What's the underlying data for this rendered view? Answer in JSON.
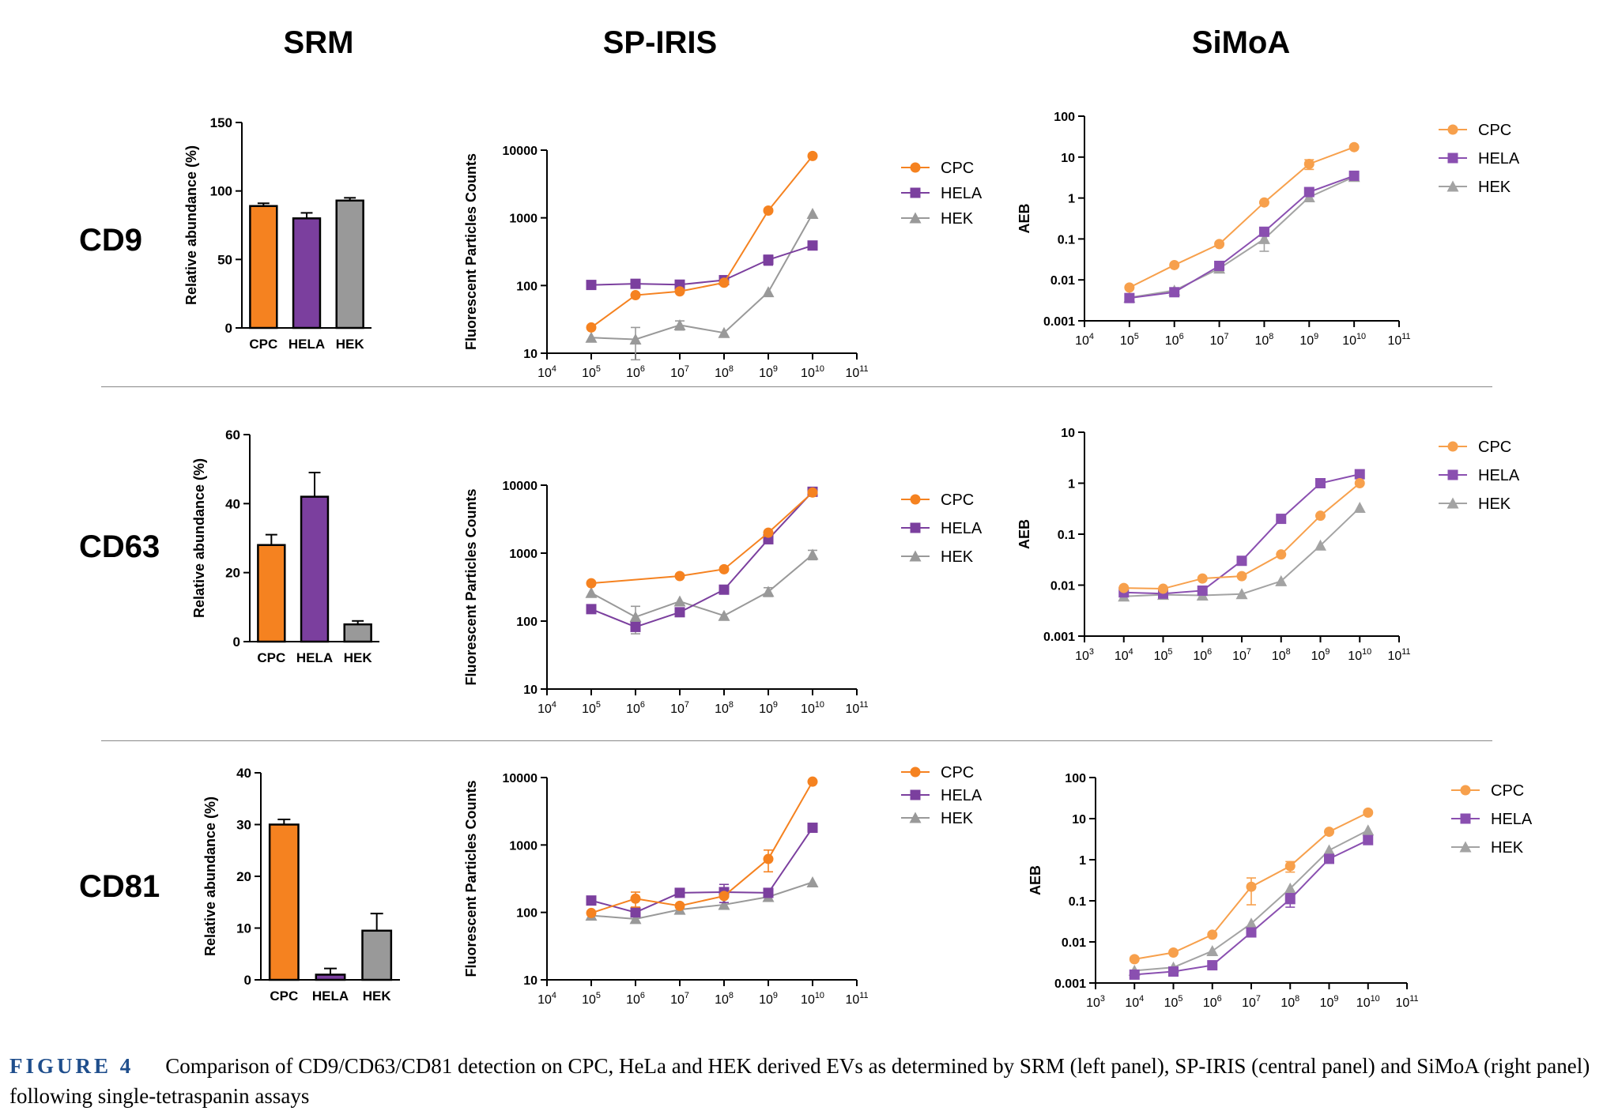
{
  "headers": {
    "srm": "SRM",
    "iris": "SP-IRIS",
    "simoa": "SiMoA"
  },
  "rows": [
    "CD9",
    "CD63",
    "CD81"
  ],
  "caption": {
    "label": "FIGURE 4",
    "text": "Comparison of CD9/CD63/CD81 detection on CPC, HeLa and HEK derived EVs as determined by SRM (left panel), SP-IRIS (central panel) and SiMoA (right panel) following single-tetraspanin assays"
  },
  "colors": {
    "CPC": "#f58220",
    "HELA": "#7b3f9e",
    "HEK": "#999999",
    "CPC_light": "#f7a04c",
    "HELA_light": "#8a4fb0",
    "HEK_light": "#a3a3a3"
  },
  "chart_data": [
    {
      "id": "srm_cd9",
      "type": "bar",
      "categories": [
        "CPC",
        "HELA",
        "HEK"
      ],
      "values": [
        89,
        80,
        93
      ],
      "errors": [
        2,
        4,
        2
      ],
      "ylabel": "Relative abundance (%)",
      "ylim": [
        0,
        150
      ],
      "yticks": [
        0,
        50,
        100,
        150
      ]
    },
    {
      "id": "iris_cd9",
      "type": "line",
      "xscale": "log",
      "yscale": "log",
      "x": [
        100000,
        1000000,
        10000000,
        100000000,
        1000000000,
        10000000000
      ],
      "xlim_exp": [
        4,
        11
      ],
      "ylim_exp": [
        1,
        4
      ],
      "ylabel": "Fluorescent Particles Counts",
      "series": [
        {
          "name": "CPC",
          "values": [
            24,
            72,
            82,
            110,
            1280,
            8200
          ],
          "marker": "circle"
        },
        {
          "name": "HELA",
          "values": [
            102,
            106,
            103,
            120,
            240,
            390
          ],
          "marker": "square",
          "errors": [
            0,
            0,
            0,
            0,
            40,
            0
          ]
        },
        {
          "name": "HEK",
          "values": [
            17,
            16,
            26,
            20,
            80,
            1150
          ],
          "marker": "triangle",
          "errors": [
            0,
            8,
            4,
            0,
            0,
            0
          ]
        }
      ]
    },
    {
      "id": "simoa_cd9",
      "type": "line",
      "xscale": "log",
      "yscale": "log",
      "x": [
        100000,
        1000000,
        10000000,
        100000000,
        1000000000,
        10000000000
      ],
      "xlim_exp": [
        4,
        11
      ],
      "ylim_exp": [
        -3,
        2
      ],
      "ylabel": "AEB",
      "series": [
        {
          "name": "CPC",
          "values": [
            0.0065,
            0.023,
            0.075,
            0.78,
            6.8,
            17.5
          ],
          "marker": "circle",
          "errors": [
            0,
            0,
            0,
            0,
            1.8,
            0
          ]
        },
        {
          "name": "HELA",
          "values": [
            0.0036,
            0.005,
            0.022,
            0.15,
            1.4,
            3.5
          ],
          "marker": "square"
        },
        {
          "name": "HEK",
          "values": [
            0.0037,
            0.0055,
            0.019,
            0.1,
            1.05,
            3.3
          ],
          "marker": "triangle",
          "errors": [
            0,
            0,
            0,
            0.05,
            0,
            0
          ]
        }
      ]
    },
    {
      "id": "srm_cd63",
      "type": "bar",
      "categories": [
        "CPC",
        "HELA",
        "HEK"
      ],
      "values": [
        28,
        42,
        5
      ],
      "errors": [
        3,
        7,
        1
      ],
      "ylabel": "Relative abundance (%)",
      "ylim": [
        0,
        60
      ],
      "yticks": [
        0,
        20,
        40,
        60
      ]
    },
    {
      "id": "iris_cd63",
      "type": "line",
      "xscale": "log",
      "yscale": "log",
      "x": [
        100000,
        1000000,
        10000000,
        100000000,
        1000000000,
        10000000000
      ],
      "xlim_exp": [
        4,
        11
      ],
      "ylim_exp": [
        1,
        4
      ],
      "ylabel": "Fluorescent Particles Counts",
      "series": [
        {
          "name": "CPC",
          "values": [
            360,
            0,
            460,
            580,
            2000,
            7800
          ],
          "marker": "circle",
          "skip": [
            1
          ]
        },
        {
          "name": "HELA",
          "values": [
            150,
            82,
            135,
            290,
            1600,
            8000
          ],
          "marker": "square"
        },
        {
          "name": "HEK",
          "values": [
            260,
            115,
            195,
            120,
            270,
            950
          ],
          "marker": "triangle",
          "errors": [
            0,
            50,
            0,
            0,
            40,
            150
          ]
        }
      ]
    },
    {
      "id": "simoa_cd63",
      "type": "line",
      "xscale": "log",
      "yscale": "log",
      "x": [
        10000,
        100000,
        1000000,
        10000000,
        100000000,
        1000000000,
        10000000000
      ],
      "xlim_exp": [
        3,
        11
      ],
      "ylim_exp": [
        -3,
        1
      ],
      "ylabel": "AEB",
      "series": [
        {
          "name": "CPC",
          "values": [
            0.0088,
            0.0085,
            0.0135,
            0.015,
            0.04,
            0.23,
            1.0
          ],
          "marker": "circle"
        },
        {
          "name": "HELA",
          "values": [
            0.0072,
            0.0068,
            0.0078,
            0.03,
            0.2,
            1.0,
            1.5
          ],
          "marker": "square"
        },
        {
          "name": "HEK",
          "values": [
            0.006,
            0.0065,
            0.0063,
            0.0067,
            0.012,
            0.06,
            0.33
          ],
          "marker": "triangle"
        }
      ]
    },
    {
      "id": "srm_cd81",
      "type": "bar",
      "categories": [
        "CPC",
        "HELA",
        "HEK"
      ],
      "values": [
        30,
        1,
        9.5
      ],
      "errors": [
        1,
        1.2,
        3.3
      ],
      "ylabel": "Relative abundance (%)",
      "ylim": [
        0,
        40
      ],
      "yticks": [
        0,
        10,
        20,
        30,
        40
      ]
    },
    {
      "id": "iris_cd81",
      "type": "line",
      "xscale": "log",
      "yscale": "log",
      "x": [
        100000,
        1000000,
        10000000,
        100000000,
        1000000000,
        10000000000
      ],
      "xlim_exp": [
        4,
        11
      ],
      "ylim_exp": [
        1,
        4
      ],
      "ylabel": "Fluorescent Particles Counts",
      "series": [
        {
          "name": "CPC",
          "values": [
            98,
            160,
            125,
            175,
            620,
            8700
          ],
          "marker": "circle",
          "errors": [
            0,
            40,
            0,
            0,
            220,
            0
          ]
        },
        {
          "name": "HELA",
          "values": [
            150,
            100,
            195,
            200,
            195,
            1800
          ],
          "marker": "square",
          "errors": [
            0,
            0,
            0,
            60,
            0,
            0
          ]
        },
        {
          "name": "HEK",
          "values": [
            90,
            80,
            110,
            130,
            170,
            280
          ],
          "marker": "triangle"
        }
      ]
    },
    {
      "id": "simoa_cd81",
      "type": "line",
      "xscale": "log",
      "yscale": "log",
      "x": [
        10000,
        100000,
        1000000,
        10000000,
        100000000,
        1000000000,
        10000000000
      ],
      "xlim_exp": [
        3,
        11
      ],
      "ylim_exp": [
        -3,
        2
      ],
      "ylabel": "AEB",
      "series": [
        {
          "name": "CPC",
          "values": [
            0.0038,
            0.0055,
            0.015,
            0.22,
            0.7,
            4.8,
            14
          ],
          "marker": "circle",
          "errors": [
            0,
            0,
            0,
            0.14,
            0.2,
            0,
            0
          ]
        },
        {
          "name": "HELA",
          "values": [
            0.0016,
            0.0019,
            0.0027,
            0.017,
            0.11,
            1.05,
            3.0
          ],
          "marker": "square",
          "errors": [
            0,
            0,
            0,
            0,
            0.04,
            0,
            0
          ]
        },
        {
          "name": "HEK",
          "values": [
            0.002,
            0.0024,
            0.006,
            0.028,
            0.2,
            1.7,
            5.2
          ],
          "marker": "triangle"
        }
      ]
    }
  ]
}
